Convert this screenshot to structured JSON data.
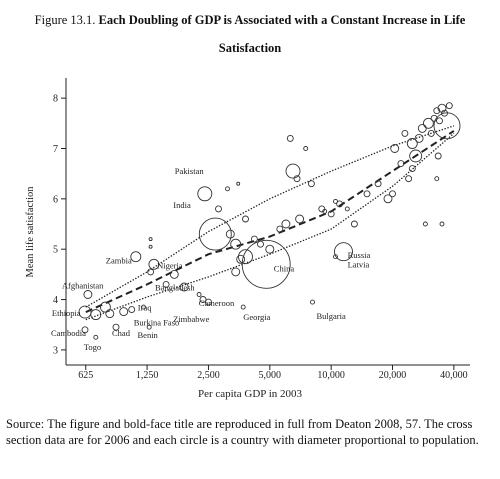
{
  "figure": {
    "number": "Figure 13.1.",
    "title": "Each Doubling of GDP is Associated with a Constant Increase in Life Satisfaction"
  },
  "source_note": "Source: The figure and bold-face title are reproduced in full from Deaton 2008, 57. The cross section data are for 2006 and each circle is a country with diameter proportional to population.",
  "chart_data": {
    "type": "scatter",
    "xlabel": "Per capita GDP in 2003",
    "ylabel": "Mean life satisfaction",
    "x_scale": "log",
    "xlim": [
      500,
      48000
    ],
    "ylim": [
      2.7,
      8.4
    ],
    "x_ticks": [
      625,
      1250,
      2500,
      5000,
      10000,
      20000,
      40000
    ],
    "x_tick_labels": [
      "625",
      "1,250",
      "2,500",
      "5,000",
      "10,000",
      "20,000",
      "40,000"
    ],
    "y_ticks": [
      3,
      4,
      5,
      6,
      7,
      8
    ],
    "grid": false,
    "legend": "none",
    "labeled_countries": [
      {
        "name": "Afghanistan",
        "x": 640,
        "y": 4.1
      },
      {
        "name": "Ethiopia",
        "x": 640,
        "y": 3.75
      },
      {
        "name": "Cambodia",
        "x": 620,
        "y": 3.4
      },
      {
        "name": "Togo",
        "x": 700,
        "y": 3.2
      },
      {
        "name": "Chad",
        "x": 880,
        "y": 3.4
      },
      {
        "name": "Zambia",
        "x": 1100,
        "y": 4.8
      },
      {
        "name": "Nigeria",
        "x": 1400,
        "y": 4.7
      },
      {
        "name": "Iraq",
        "x": 1100,
        "y": 3.7
      },
      {
        "name": "Burkina Faso",
        "x": 1150,
        "y": 3.6
      },
      {
        "name": "Benin",
        "x": 1200,
        "y": 3.4
      },
      {
        "name": "Pakistan",
        "x": 2400,
        "y": 6.1
      },
      {
        "name": "India",
        "x": 2700,
        "y": 5.3
      },
      {
        "name": "Bangladesh",
        "x": 2100,
        "y": 4.1
      },
      {
        "name": "Cameroon",
        "x": 2400,
        "y": 3.95
      },
      {
        "name": "Zimbabwe",
        "x": 2300,
        "y": 3.75
      },
      {
        "name": "Georgia",
        "x": 3700,
        "y": 3.75
      },
      {
        "name": "China",
        "x": 5000,
        "y": 4.8
      },
      {
        "name": "Bulgaria",
        "x": 8100,
        "y": 3.85
      },
      {
        "name": "Russia",
        "x": 11000,
        "y": 4.9
      },
      {
        "name": "Latvia",
        "x": 11000,
        "y": 4.8
      }
    ],
    "countries": [
      {
        "x": 640,
        "y": 4.1,
        "size": 4
      },
      {
        "x": 620,
        "y": 3.75,
        "size": 6
      },
      {
        "x": 700,
        "y": 3.7,
        "size": 5
      },
      {
        "x": 620,
        "y": 3.4,
        "size": 3
      },
      {
        "x": 700,
        "y": 3.25,
        "size": 2
      },
      {
        "x": 880,
        "y": 3.45,
        "size": 3
      },
      {
        "x": 780,
        "y": 3.85,
        "size": 5
      },
      {
        "x": 820,
        "y": 3.72,
        "size": 4
      },
      {
        "x": 960,
        "y": 3.76,
        "size": 4
      },
      {
        "x": 1050,
        "y": 3.8,
        "size": 3
      },
      {
        "x": 1100,
        "y": 4.85,
        "size": 5
      },
      {
        "x": 1300,
        "y": 4.55,
        "size": 3
      },
      {
        "x": 1350,
        "y": 4.7,
        "size": 5
      },
      {
        "x": 1280,
        "y": 3.45,
        "size": 2
      },
      {
        "x": 1300,
        "y": 5.05,
        "size": 1.5
      },
      {
        "x": 1300,
        "y": 5.2,
        "size": 1.5
      },
      {
        "x": 1200,
        "y": 3.85,
        "size": 2
      },
      {
        "x": 1550,
        "y": 4.3,
        "size": 3
      },
      {
        "x": 1700,
        "y": 4.5,
        "size": 4
      },
      {
        "x": 1900,
        "y": 4.25,
        "size": 4
      },
      {
        "x": 2250,
        "y": 4.1,
        "size": 2
      },
      {
        "x": 2400,
        "y": 6.1,
        "size": 7
      },
      {
        "x": 2700,
        "y": 5.3,
        "size": 16
      },
      {
        "x": 2350,
        "y": 4.0,
        "size": 3
      },
      {
        "x": 2500,
        "y": 3.95,
        "size": 3
      },
      {
        "x": 3200,
        "y": 5.3,
        "size": 4
      },
      {
        "x": 3400,
        "y": 5.1,
        "size": 5
      },
      {
        "x": 3400,
        "y": 4.55,
        "size": 4
      },
      {
        "x": 3600,
        "y": 4.8,
        "size": 4
      },
      {
        "x": 3800,
        "y": 4.85,
        "size": 7
      },
      {
        "x": 4800,
        "y": 4.7,
        "size": 24
      },
      {
        "x": 3700,
        "y": 3.85,
        "size": 2
      },
      {
        "x": 2800,
        "y": 5.8,
        "size": 3
      },
      {
        "x": 3100,
        "y": 6.2,
        "size": 2
      },
      {
        "x": 3500,
        "y": 6.3,
        "size": 1.5
      },
      {
        "x": 3800,
        "y": 5.6,
        "size": 3
      },
      {
        "x": 4200,
        "y": 5.2,
        "size": 3
      },
      {
        "x": 4500,
        "y": 5.1,
        "size": 3
      },
      {
        "x": 5000,
        "y": 5.0,
        "size": 4
      },
      {
        "x": 5600,
        "y": 5.4,
        "size": 3
      },
      {
        "x": 6000,
        "y": 5.5,
        "size": 4
      },
      {
        "x": 6500,
        "y": 6.55,
        "size": 7
      },
      {
        "x": 7000,
        "y": 5.6,
        "size": 4
      },
      {
        "x": 6800,
        "y": 6.4,
        "size": 3
      },
      {
        "x": 6300,
        "y": 7.2,
        "size": 3
      },
      {
        "x": 7500,
        "y": 7.0,
        "size": 2
      },
      {
        "x": 8000,
        "y": 6.3,
        "size": 3
      },
      {
        "x": 8100,
        "y": 3.95,
        "size": 2
      },
      {
        "x": 9000,
        "y": 5.8,
        "size": 3
      },
      {
        "x": 9300,
        "y": 5.75,
        "size": 2
      },
      {
        "x": 10000,
        "y": 5.7,
        "size": 3
      },
      {
        "x": 10500,
        "y": 5.95,
        "size": 2
      },
      {
        "x": 11000,
        "y": 5.9,
        "size": 3
      },
      {
        "x": 12000,
        "y": 5.8,
        "size": 2
      },
      {
        "x": 11500,
        "y": 4.95,
        "size": 9
      },
      {
        "x": 10500,
        "y": 4.85,
        "size": 2
      },
      {
        "x": 13000,
        "y": 5.5,
        "size": 3
      },
      {
        "x": 15000,
        "y": 6.1,
        "size": 3
      },
      {
        "x": 17000,
        "y": 6.3,
        "size": 3
      },
      {
        "x": 19000,
        "y": 6.0,
        "size": 4
      },
      {
        "x": 20000,
        "y": 6.1,
        "size": 3
      },
      {
        "x": 20500,
        "y": 7.0,
        "size": 4
      },
      {
        "x": 22000,
        "y": 6.7,
        "size": 3
      },
      {
        "x": 23000,
        "y": 7.3,
        "size": 3
      },
      {
        "x": 25000,
        "y": 6.6,
        "size": 3
      },
      {
        "x": 25000,
        "y": 7.1,
        "size": 5
      },
      {
        "x": 26000,
        "y": 6.85,
        "size": 6
      },
      {
        "x": 27000,
        "y": 7.2,
        "size": 4
      },
      {
        "x": 28000,
        "y": 7.4,
        "size": 4
      },
      {
        "x": 30000,
        "y": 7.5,
        "size": 5
      },
      {
        "x": 31000,
        "y": 7.3,
        "size": 3
      },
      {
        "x": 32000,
        "y": 7.6,
        "size": 3
      },
      {
        "x": 33000,
        "y": 7.75,
        "size": 3
      },
      {
        "x": 34000,
        "y": 7.55,
        "size": 3
      },
      {
        "x": 35000,
        "y": 7.8,
        "size": 4
      },
      {
        "x": 36000,
        "y": 7.7,
        "size": 3
      },
      {
        "x": 37000,
        "y": 7.45,
        "size": 13
      },
      {
        "x": 38000,
        "y": 7.85,
        "size": 3
      },
      {
        "x": 33500,
        "y": 6.85,
        "size": 3
      },
      {
        "x": 33000,
        "y": 6.4,
        "size": 2
      },
      {
        "x": 35000,
        "y": 5.5,
        "size": 2
      },
      {
        "x": 29000,
        "y": 5.5,
        "size": 2
      },
      {
        "x": 24000,
        "y": 6.4,
        "size": 3
      }
    ],
    "trend_lines": [
      {
        "style": "dashed",
        "points": [
          [
            625,
            3.75
          ],
          [
            1250,
            4.3
          ],
          [
            2500,
            4.9
          ],
          [
            5000,
            5.25
          ],
          [
            10000,
            5.75
          ],
          [
            20000,
            6.55
          ],
          [
            40000,
            7.35
          ]
        ]
      },
      {
        "style": "dotted",
        "points": [
          [
            625,
            3.85
          ],
          [
            1250,
            4.55
          ],
          [
            2500,
            5.35
          ],
          [
            5000,
            6.0
          ],
          [
            10000,
            6.55
          ],
          [
            20000,
            7.05
          ],
          [
            40000,
            7.45
          ]
        ]
      },
      {
        "style": "dotted",
        "points": [
          [
            625,
            3.6
          ],
          [
            1250,
            4.05
          ],
          [
            2500,
            4.45
          ],
          [
            5000,
            4.9
          ],
          [
            10000,
            5.4
          ],
          [
            20000,
            6.25
          ],
          [
            40000,
            7.3
          ]
        ]
      }
    ]
  }
}
